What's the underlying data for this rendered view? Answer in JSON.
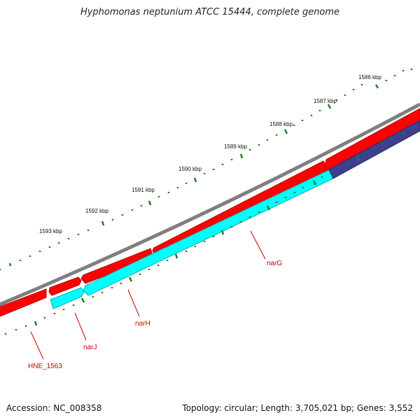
{
  "title": "Hyphomonas neptunium ATCC 15444, complete genome",
  "footer": {
    "accession": "Accession: NC_008358",
    "topology": "Topology: circular; Length: 3,705,021 bp; Genes: 3,552"
  },
  "colors": {
    "backbone": "#7f7f7f",
    "forward_cds": "#ff0000",
    "reverse_cds": "#00ffff",
    "other_feature": "#3f3f8f",
    "tick": "#1a7f1a",
    "gene_label": "#cc0000"
  },
  "scale_labels": [
    "1586 kbp",
    "1587 kbp",
    "1588 kbp",
    "1589 kbp",
    "1590 kbp",
    "1591 kbp",
    "1592 kbp",
    "1593 kbp"
  ],
  "gene_labels": [
    "narG",
    "narH",
    "narJ",
    "HNE_1563"
  ]
}
